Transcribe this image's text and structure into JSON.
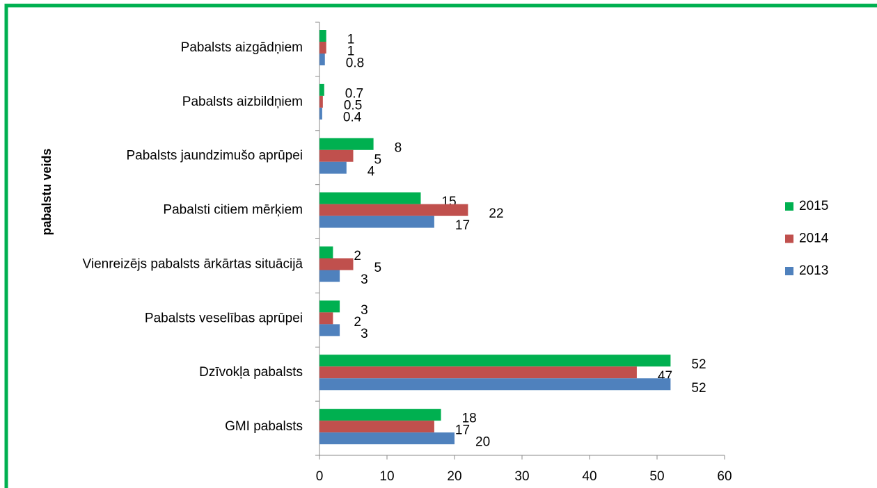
{
  "chart_data": {
    "type": "bar",
    "orientation": "horizontal",
    "y_axis_label": "pabalstu veids",
    "categories": [
      "Pabalsts aizgādņiem",
      "Pabalsts aizbildņiem",
      "Pabalsts jaundzimušo aprūpei",
      "Pabalsti citiem mērķiem",
      "Vienreizējs pabalsts ārkārtas situācijā",
      "Pabalsts veselības aprūpei",
      "Dzīvokļa pabalsts",
      "GMI pabalsts"
    ],
    "series": [
      {
        "name": "2015",
        "color": "#00b050",
        "values": [
          1,
          0.7,
          8,
          15,
          2,
          3,
          52,
          18
        ]
      },
      {
        "name": "2014",
        "color": "#c0504d",
        "values": [
          1,
          0.5,
          5,
          22,
          5,
          2,
          47,
          17
        ]
      },
      {
        "name": "2013",
        "color": "#4f81bd",
        "values": [
          0.8,
          0.4,
          4,
          17,
          3,
          3,
          52,
          20
        ]
      }
    ],
    "xlim": [
      0,
      60
    ],
    "xticks": [
      0,
      10,
      20,
      30,
      40,
      50,
      60
    ],
    "legend": "right"
  }
}
